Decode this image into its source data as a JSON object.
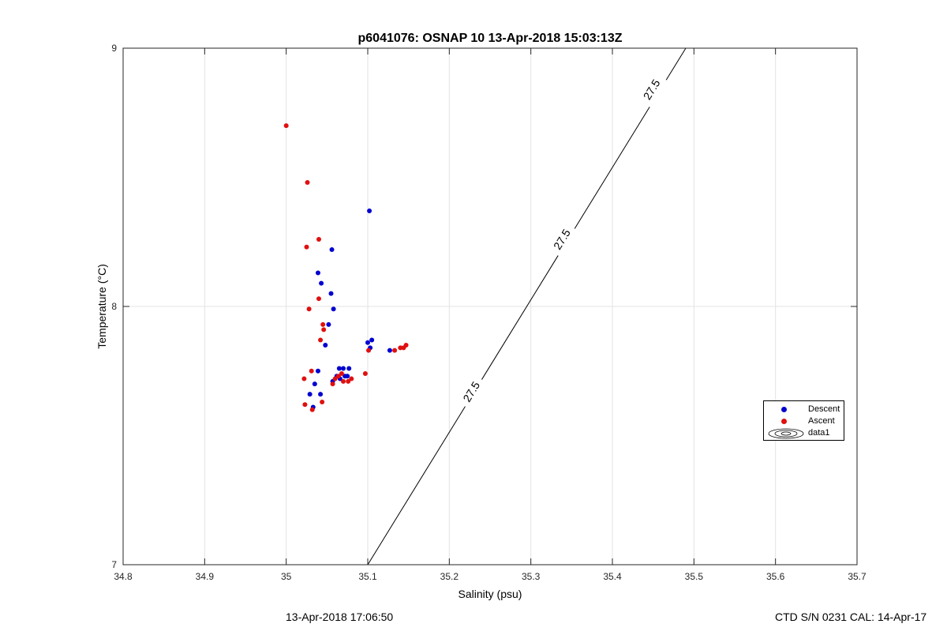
{
  "chart_data": {
    "type": "scatter",
    "title": "p6041076: OSNAP 10 13-Apr-2018 15:03:13Z",
    "xlabel": "Salinity (psu)",
    "ylabel": "Temperature (°C)",
    "xlim": [
      34.8,
      35.7
    ],
    "ylim": [
      7,
      9
    ],
    "xticks": [
      "34.8",
      "34.9",
      "35",
      "35.1",
      "35.2",
      "35.3",
      "35.4",
      "35.5",
      "35.6",
      "35.7"
    ],
    "yticks": [
      "7",
      "8",
      "9"
    ],
    "grid": true,
    "legend_position": "right",
    "series": [
      {
        "name": "Descent",
        "color": "#0000d0",
        "points": [
          [
            35.102,
            8.37
          ],
          [
            35.056,
            8.22
          ],
          [
            35.039,
            8.13
          ],
          [
            35.043,
            8.09
          ],
          [
            35.055,
            8.05
          ],
          [
            35.058,
            7.99
          ],
          [
            35.052,
            7.93
          ],
          [
            35.048,
            7.85
          ],
          [
            35.105,
            7.87
          ],
          [
            35.1,
            7.86
          ],
          [
            35.103,
            7.84
          ],
          [
            35.127,
            7.83
          ],
          [
            35.039,
            7.75
          ],
          [
            35.065,
            7.76
          ],
          [
            35.07,
            7.76
          ],
          [
            35.077,
            7.76
          ],
          [
            35.062,
            7.73
          ],
          [
            35.072,
            7.73
          ],
          [
            35.075,
            7.73
          ],
          [
            35.066,
            7.72
          ],
          [
            35.057,
            7.71
          ],
          [
            35.035,
            7.7
          ],
          [
            35.029,
            7.66
          ],
          [
            35.042,
            7.66
          ],
          [
            35.033,
            7.61
          ]
        ]
      },
      {
        "name": "Ascent",
        "color": "#e01010",
        "points": [
          [
            35.0,
            8.7
          ],
          [
            35.026,
            8.48
          ],
          [
            35.04,
            8.26
          ],
          [
            35.025,
            8.23
          ],
          [
            35.04,
            8.03
          ],
          [
            35.028,
            7.99
          ],
          [
            35.045,
            7.93
          ],
          [
            35.046,
            7.91
          ],
          [
            35.042,
            7.87
          ],
          [
            35.101,
            7.83
          ],
          [
            35.133,
            7.83
          ],
          [
            35.14,
            7.84
          ],
          [
            35.144,
            7.84
          ],
          [
            35.147,
            7.85
          ],
          [
            35.031,
            7.75
          ],
          [
            35.068,
            7.74
          ],
          [
            35.097,
            7.74
          ],
          [
            35.064,
            7.73
          ],
          [
            35.06,
            7.72
          ],
          [
            35.08,
            7.72
          ],
          [
            35.022,
            7.72
          ],
          [
            35.07,
            7.71
          ],
          [
            35.076,
            7.71
          ],
          [
            35.057,
            7.7
          ],
          [
            35.044,
            7.63
          ],
          [
            35.023,
            7.62
          ],
          [
            35.032,
            7.6
          ]
        ]
      }
    ],
    "isopycnal": {
      "label": "27.5",
      "line": [
        [
          35.1,
          7.0
        ],
        [
          35.49,
          9.0
        ]
      ],
      "label_points": [
        [
          35.227,
          7.67
        ],
        [
          35.338,
          8.26
        ],
        [
          35.448,
          8.84
        ]
      ]
    },
    "legend_extra": "data1"
  },
  "footer": {
    "timestamp": "13-Apr-2018 17:06:50",
    "sensor": "CTD S/N 0231  CAL: 14-Apr-17"
  }
}
